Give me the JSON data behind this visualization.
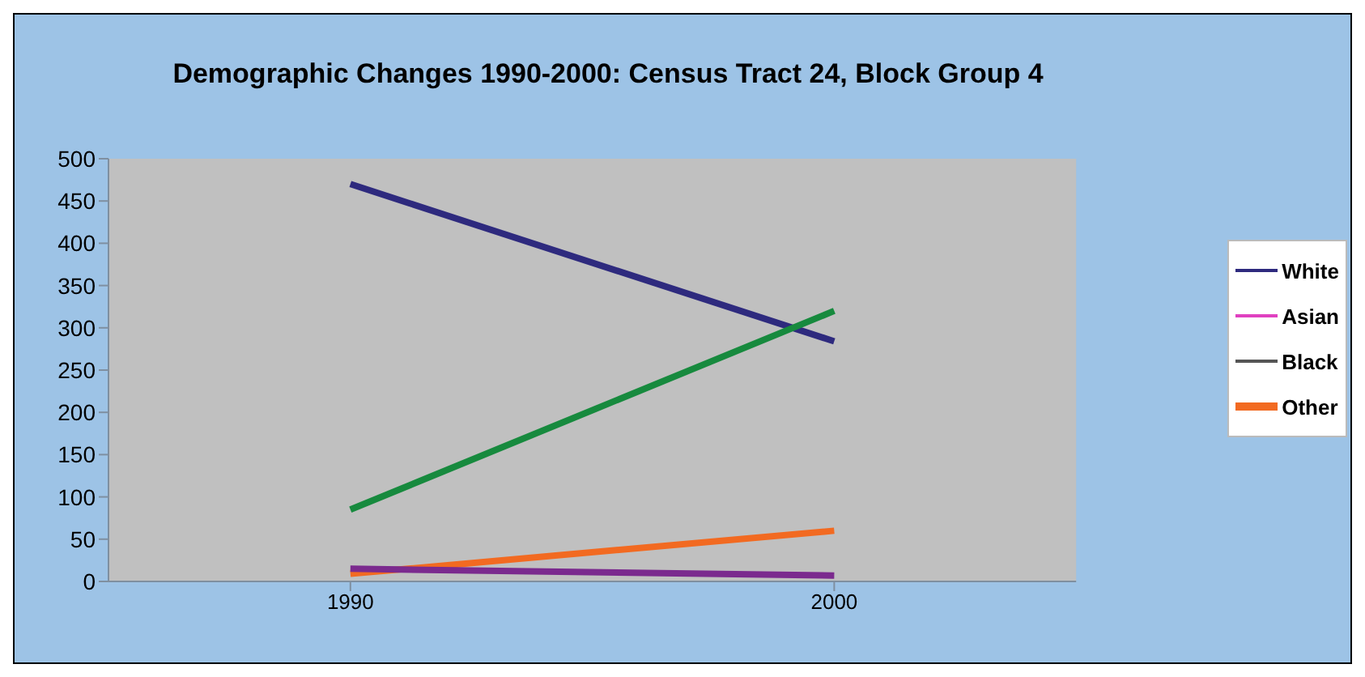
{
  "chart_data": {
    "type": "line",
    "title": "Demographic Changes 1990-2000: Census Tract 24, Block Group 4",
    "categories": [
      "1990",
      "2000"
    ],
    "series": [
      {
        "name": "White",
        "color": "#2e2a7e",
        "values": [
          470,
          284
        ]
      },
      {
        "name": "Asian",
        "color": "#e040c0",
        "values": [
          null,
          null
        ]
      },
      {
        "name": "Black",
        "color": "#555555",
        "values": [
          null,
          null
        ]
      },
      {
        "name": "Other",
        "color": "#f26a21",
        "values": [
          9,
          60
        ]
      },
      {
        "color": "#178a3e",
        "values": [
          85,
          320
        ]
      },
      {
        "color": "#7b2a8e",
        "values": [
          15,
          7
        ]
      }
    ],
    "ylim": [
      0,
      500
    ],
    "yticks": [
      0,
      50,
      100,
      150,
      200,
      250,
      300,
      350,
      400,
      450,
      500
    ],
    "grid": false,
    "legend": "right",
    "marker": "none",
    "line_style": "solid"
  }
}
